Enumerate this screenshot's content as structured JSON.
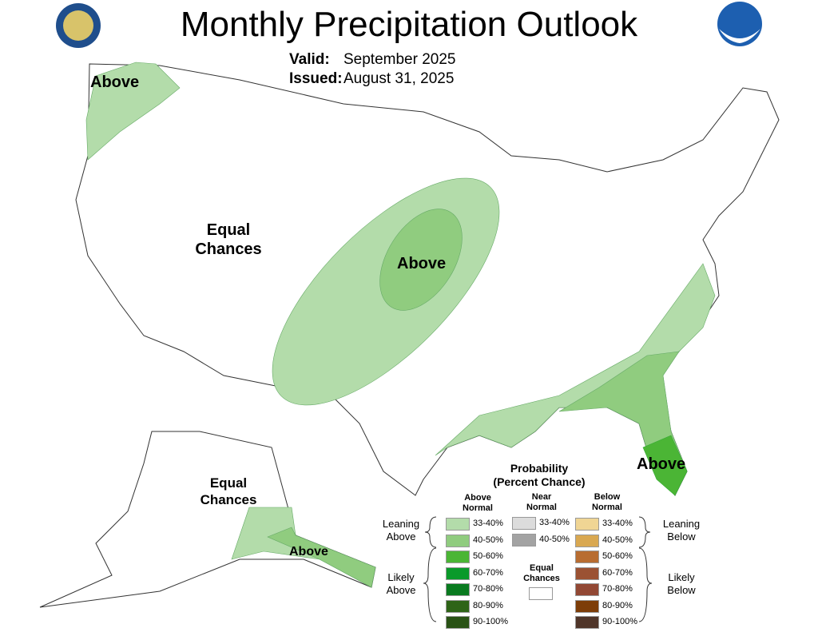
{
  "header": {
    "title": "Monthly Precipitation Outlook",
    "valid_label": "Valid:",
    "valid_value": "September 2025",
    "issued_label": "Issued:",
    "issued_value": "August 31, 2025",
    "left_logo": "department-of-commerce-seal",
    "right_logo": "NOAA"
  },
  "map_labels": {
    "pnw": "Above",
    "west_1": "Equal",
    "west_2": "Chances",
    "central": "Above",
    "florida": "Above",
    "alaska_1": "Equal",
    "alaska_2": "Chances",
    "alaska_se": "Above"
  },
  "legend": {
    "title_1": "Probability",
    "title_2": "(Percent Chance)",
    "col_above_1": "Above",
    "col_above_2": "Normal",
    "col_near_1": "Near",
    "col_near_2": "Normal",
    "col_below_1": "Below",
    "col_below_2": "Normal",
    "leaning_above_1": "Leaning",
    "leaning_above_2": "Above",
    "likely_above_1": "Likely",
    "likely_above_2": "Above",
    "leaning_below_1": "Leaning",
    "leaning_below_2": "Below",
    "likely_below_1": "Likely",
    "likely_below_2": "Below",
    "equal_1": "Equal",
    "equal_2": "Chances",
    "above": [
      {
        "label": "33-40%",
        "color": "#b3dcaa"
      },
      {
        "label": "40-50%",
        "color": "#90cc7f"
      },
      {
        "label": "50-60%",
        "color": "#4bb535"
      },
      {
        "label": "60-70%",
        "color": "#0a9a2a"
      },
      {
        "label": "70-80%",
        "color": "#097a1f"
      },
      {
        "label": "80-90%",
        "color": "#2e6417"
      },
      {
        "label": "90-100%",
        "color": "#295215"
      }
    ],
    "near": [
      {
        "label": "33-40%",
        "color": "#dcdcdc"
      },
      {
        "label": "40-50%",
        "color": "#a3a3a3"
      }
    ],
    "below": [
      {
        "label": "33-40%",
        "color": "#f0d594"
      },
      {
        "label": "40-50%",
        "color": "#d9a851"
      },
      {
        "label": "50-60%",
        "color": "#b86d31"
      },
      {
        "label": "60-70%",
        "color": "#9b5233"
      },
      {
        "label": "70-80%",
        "color": "#924834"
      },
      {
        "label": "80-90%",
        "color": "#7d3d08"
      },
      {
        "label": "90-100%",
        "color": "#4f3529"
      }
    ]
  }
}
